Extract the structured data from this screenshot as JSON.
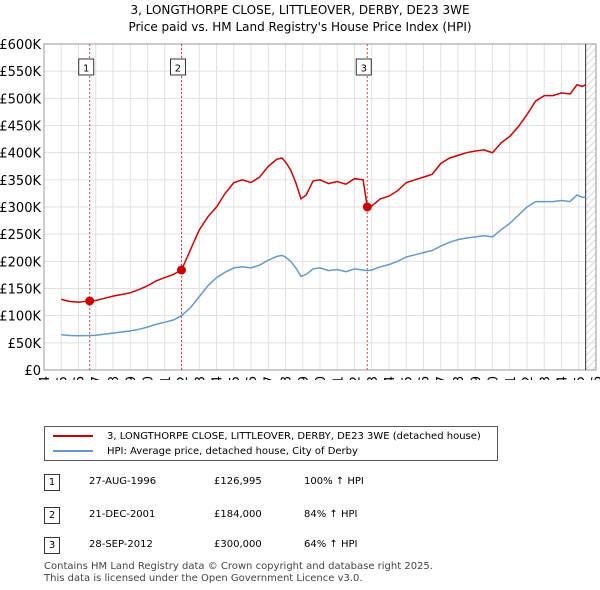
{
  "title_line1": "3, LONGTHORPE CLOSE, LITTLEOVER, DERBY, DE23 3WE",
  "title_line2": "Price paid vs. HM Land Registry's House Price Index (HPI)",
  "chart_data": {
    "type": "line",
    "title": "3, LONGTHORPE CLOSE, LITTLEOVER, DERBY, DE23 3WE",
    "subtitle": "Price paid vs. HM Land Registry's House Price Index (HPI)",
    "xlabel": "",
    "ylabel": "",
    "xlim": [
      1994,
      2026
    ],
    "ylim": [
      0,
      600000
    ],
    "yticks": [
      0,
      50000,
      100000,
      150000,
      200000,
      250000,
      300000,
      350000,
      400000,
      450000,
      500000,
      550000,
      600000
    ],
    "ytick_labels": [
      "£0",
      "£50K",
      "£100K",
      "£150K",
      "£200K",
      "£250K",
      "£300K",
      "£350K",
      "£400K",
      "£450K",
      "£500K",
      "£550K",
      "£600K"
    ],
    "xticks": [
      "1994",
      "1995",
      "1996",
      "1997",
      "1998",
      "1999",
      "2000",
      "2001",
      "2002",
      "2003",
      "2004",
      "2005",
      "2006",
      "2007",
      "2008",
      "2009",
      "2010",
      "2011",
      "2012",
      "2013",
      "2014",
      "2015",
      "2016",
      "2017",
      "2018",
      "2019",
      "2020",
      "2021",
      "2022",
      "2023",
      "2024",
      "2025",
      "2026"
    ],
    "grid": true,
    "series": [
      {
        "name": "3, LONGTHORPE CLOSE, LITTLEOVER, DERBY, DE23 3WE (detached house)",
        "color": "#cc0000",
        "x": [
          1995.0,
          1995.5,
          1996.0,
          1996.65,
          1997.0,
          1997.5,
          1998.0,
          1998.5,
          1999.0,
          1999.5,
          2000.0,
          2000.5,
          2001.0,
          2001.5,
          2001.97,
          2002.5,
          2003.0,
          2003.5,
          2004.0,
          2004.5,
          2005.0,
          2005.5,
          2006.0,
          2006.5,
          2007.0,
          2007.5,
          2007.8,
          2008.0,
          2008.3,
          2008.6,
          2008.9,
          2009.2,
          2009.6,
          2010.0,
          2010.5,
          2011.0,
          2011.5,
          2012.0,
          2012.5,
          2012.74,
          2013.0,
          2013.5,
          2014.0,
          2014.5,
          2015.0,
          2015.5,
          2016.0,
          2016.5,
          2017.0,
          2017.5,
          2018.0,
          2018.5,
          2019.0,
          2019.5,
          2020.0,
          2020.5,
          2021.0,
          2021.5,
          2022.0,
          2022.5,
          2023.0,
          2023.5,
          2024.0,
          2024.5,
          2024.9,
          2025.2,
          2025.4
        ],
        "y": [
          130000,
          126000,
          125000,
          126995,
          128000,
          132000,
          136000,
          139000,
          142000,
          148000,
          155000,
          164000,
          170000,
          176000,
          184000,
          222000,
          258000,
          282000,
          300000,
          325000,
          345000,
          350000,
          345000,
          355000,
          375000,
          388000,
          390000,
          383000,
          368000,
          345000,
          315000,
          322000,
          348000,
          350000,
          343000,
          347000,
          342000,
          352000,
          350000,
          300000,
          302000,
          315000,
          320000,
          330000,
          345000,
          350000,
          355000,
          360000,
          380000,
          390000,
          395000,
          400000,
          403000,
          405000,
          400000,
          418000,
          430000,
          448000,
          470000,
          495000,
          505000,
          505000,
          510000,
          508000,
          525000,
          522000,
          525000
        ]
      },
      {
        "name": "HPI: Average price, detached house, City of Derby",
        "color": "#6699cc",
        "x": [
          1995.0,
          1995.5,
          1996.0,
          1996.65,
          1997.0,
          1997.5,
          1998.0,
          1998.5,
          1999.0,
          1999.5,
          2000.0,
          2000.5,
          2001.0,
          2001.5,
          2001.97,
          2002.5,
          2003.0,
          2003.5,
          2004.0,
          2004.5,
          2005.0,
          2005.5,
          2006.0,
          2006.5,
          2007.0,
          2007.5,
          2007.8,
          2008.0,
          2008.3,
          2008.6,
          2008.9,
          2009.2,
          2009.6,
          2010.0,
          2010.5,
          2011.0,
          2011.5,
          2012.0,
          2012.5,
          2012.74,
          2013.0,
          2013.5,
          2014.0,
          2014.5,
          2015.0,
          2015.5,
          2016.0,
          2016.5,
          2017.0,
          2017.5,
          2018.0,
          2018.5,
          2019.0,
          2019.5,
          2020.0,
          2020.5,
          2021.0,
          2021.5,
          2022.0,
          2022.5,
          2023.0,
          2023.5,
          2024.0,
          2024.5,
          2024.9,
          2025.2,
          2025.4
        ],
        "y": [
          65000,
          63500,
          63000,
          63500,
          64000,
          66000,
          68000,
          70000,
          72000,
          75000,
          79000,
          84000,
          88000,
          92000,
          100000,
          115000,
          135000,
          155000,
          170000,
          180000,
          188000,
          190000,
          188000,
          193000,
          202000,
          209000,
          211000,
          208000,
          200000,
          188000,
          172000,
          176000,
          186000,
          188000,
          183000,
          185000,
          181000,
          186000,
          184000,
          183000,
          184000,
          190000,
          194000,
          200000,
          208000,
          212000,
          216000,
          220000,
          228000,
          235000,
          240000,
          243000,
          245000,
          247000,
          245000,
          258000,
          270000,
          285000,
          300000,
          310000,
          310000,
          310000,
          312000,
          310000,
          322000,
          318000,
          318000
        ]
      }
    ],
    "sales": [
      {
        "num": "1",
        "x": 1996.65,
        "price": 126995
      },
      {
        "num": "2",
        "x": 2001.97,
        "price": 184000
      },
      {
        "num": "3",
        "x": 2012.74,
        "price": 300000
      }
    ]
  },
  "legend": {
    "red_label": "3, LONGTHORPE CLOSE, LITTLEOVER, DERBY, DE23 3WE (detached house)",
    "blue_label": "HPI: Average price, detached house, City of Derby"
  },
  "sales_table": [
    {
      "num": "1",
      "date": "27-AUG-1996",
      "price": "£126,995",
      "hpi": "100% ↑ HPI"
    },
    {
      "num": "2",
      "date": "21-DEC-2001",
      "price": "£184,000",
      "hpi": "84% ↑ HPI"
    },
    {
      "num": "3",
      "date": "28-SEP-2012",
      "price": "£300,000",
      "hpi": "64% ↑ HPI"
    }
  ],
  "footer": {
    "line1": "Contains HM Land Registry data © Crown copyright and database right 2025.",
    "line2": "This data is licensed under the Open Government Licence v3.0."
  }
}
